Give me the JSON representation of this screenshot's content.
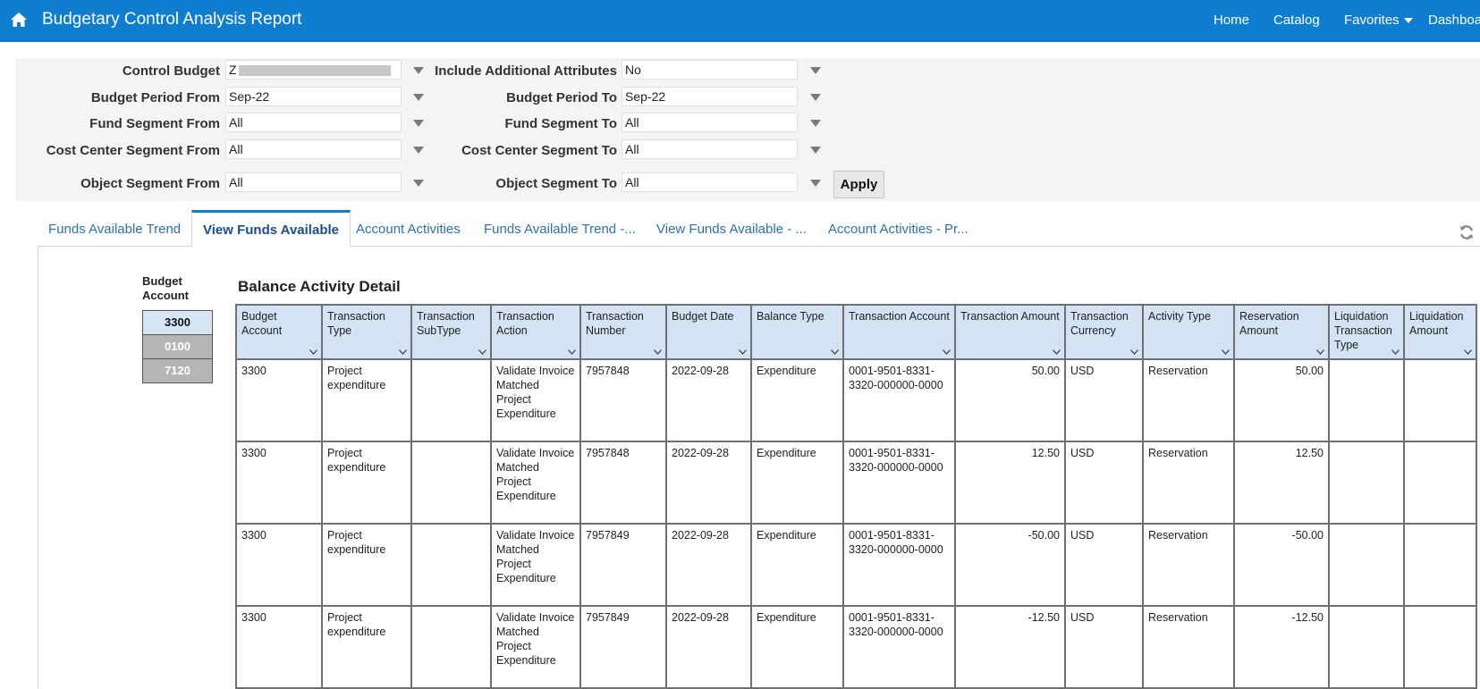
{
  "header": {
    "title": "Budgetary Control Analysis Report",
    "nav": [
      "Home",
      "Catalog",
      "Favorites",
      "Dashboa"
    ]
  },
  "prompts": {
    "control_budget": {
      "label": "Control Budget",
      "value": "Z"
    },
    "include_additional": {
      "label": "Include Additional Attributes",
      "value": "No"
    },
    "budget_period_from": {
      "label": "Budget Period From",
      "value": "Sep-22"
    },
    "budget_period_to": {
      "label": "Budget Period To",
      "value": "Sep-22"
    },
    "fund_segment_from": {
      "label": "Fund Segment From",
      "value": "All"
    },
    "fund_segment_to": {
      "label": "Fund Segment To",
      "value": "All"
    },
    "cost_center_from": {
      "label": "Cost Center Segment From",
      "value": "All"
    },
    "cost_center_to": {
      "label": "Cost Center Segment To",
      "value": "All"
    },
    "object_segment_from": {
      "label": "Object Segment From",
      "value": "All"
    },
    "object_segment_to": {
      "label": "Object Segment To",
      "value": "All"
    },
    "apply_label": "Apply"
  },
  "tabs": [
    {
      "label": "Funds Available Trend"
    },
    {
      "label": "View Funds Available",
      "active": true
    },
    {
      "label": "Account Activities"
    },
    {
      "label": "Funds Available Trend -..."
    },
    {
      "label": "View Funds Available - ..."
    },
    {
      "label": "Account Activities - Pr..."
    }
  ],
  "budget_account_panel": {
    "title": "Budget Account",
    "items": [
      {
        "label": "3300",
        "selected": true
      },
      {
        "label": "0100",
        "selected": false
      },
      {
        "label": "7120",
        "selected": false
      }
    ]
  },
  "table": {
    "title": "Balance Activity Detail",
    "columns": [
      "Budget Account",
      "Transaction Type",
      "Transaction SubType",
      "Transaction Action",
      "Transaction Number",
      "Budget Date",
      "Balance Type",
      "Transaction Account",
      "Transaction Amount",
      "Transaction Currency",
      "Activity Type",
      "Reservation Amount",
      "Liquidation Transaction Type",
      "Liquidation Amount"
    ],
    "rows": [
      [
        "3300",
        "Project expenditure",
        "",
        "Validate Invoice Matched Project Expenditure",
        "7957848",
        "2022-09-28",
        "Expenditure",
        "0001-9501-8331-3320-000000-0000",
        "50.00",
        "USD",
        "Reservation",
        "50.00",
        "",
        ""
      ],
      [
        "3300",
        "Project expenditure",
        "",
        "Validate Invoice Matched Project Expenditure",
        "7957848",
        "2022-09-28",
        "Expenditure",
        "0001-9501-8331-3320-000000-0000",
        "12.50",
        "USD",
        "Reservation",
        "12.50",
        "",
        ""
      ],
      [
        "3300",
        "Project expenditure",
        "",
        "Validate Invoice Matched Project Expenditure",
        "7957849",
        "2022-09-28",
        "Expenditure",
        "0001-9501-8331-3320-000000-0000",
        "-50.00",
        "USD",
        "Reservation",
        "-50.00",
        "",
        ""
      ],
      [
        "3300",
        "Project expenditure",
        "",
        "Validate Invoice Matched Project Expenditure",
        "7957849",
        "2022-09-28",
        "Expenditure",
        "0001-9501-8331-3320-000000-0000",
        "-12.50",
        "USD",
        "Reservation",
        "-12.50",
        "",
        ""
      ]
    ]
  }
}
